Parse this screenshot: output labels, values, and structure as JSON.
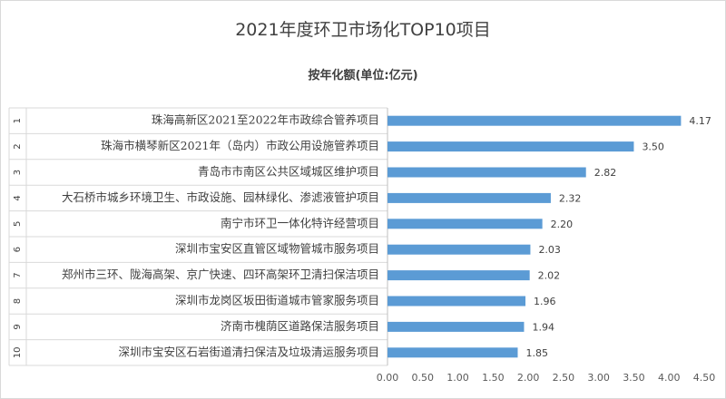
{
  "chart_data": {
    "type": "bar",
    "orientation": "horizontal",
    "title": "2021年度环卫市场化TOP10项目",
    "subtitle": "按年化额(单位:亿元)",
    "index_labels": [
      "1",
      "2",
      "3",
      "4",
      "5",
      "6",
      "7",
      "8",
      "9",
      "10"
    ],
    "categories": [
      "珠海高新区2021至2022年市政综合管养项目",
      "珠海市横琴新区2021年（岛内）市政公用设施管养项目",
      "青岛市市南区公共区域城区维护项目",
      "大石桥市城乡环境卫生、市政设施、园林绿化、渗滤液管护项目",
      "南宁市环卫一体化特许经营项目",
      "深圳市宝安区直管区域物管城市服务项目",
      "郑州市三环、陇海高架、京广快速、四环高架环卫清扫保洁项目",
      "深圳市龙岗区坂田街道城市管家服务项目",
      "济南市槐荫区道路保洁服务项目",
      "深圳市宝安区石岩街道清扫保洁及垃圾清运服务项目"
    ],
    "values": [
      4.17,
      3.5,
      2.82,
      2.32,
      2.2,
      2.03,
      2.02,
      1.96,
      1.94,
      1.85
    ],
    "value_labels": [
      "4.17",
      "3.50",
      "2.82",
      "2.32",
      "2.20",
      "2.03",
      "2.02",
      "1.96",
      "1.94",
      "1.85"
    ],
    "xlim": [
      0,
      4.5
    ],
    "xticks": [
      "0.00",
      "0.50",
      "1.00",
      "1.50",
      "2.00",
      "2.50",
      "3.00",
      "3.50",
      "4.00",
      "4.50"
    ],
    "bar_color": "#5b9bd5",
    "grid": false,
    "legend": "none"
  }
}
